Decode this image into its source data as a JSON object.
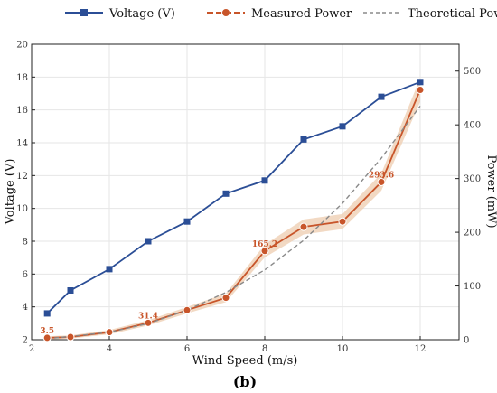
{
  "chart_data": {
    "type": "line",
    "xlabel": "Wind Speed (m/s)",
    "ylabel_left": "Voltage (V)",
    "ylabel_right": "Power (mW)",
    "panel_label": "(b)",
    "xlim": [
      2,
      13
    ],
    "ylim_left": [
      2,
      20
    ],
    "ylim_right": [
      0,
      550
    ],
    "x_ticks": [
      "2",
      "4",
      "6",
      "8",
      "10",
      "12"
    ],
    "y_left_ticks": [
      "2",
      "4",
      "6",
      "8",
      "10",
      "12",
      "14",
      "16",
      "18",
      "20"
    ],
    "y_right_ticks": [
      "0",
      "100",
      "200",
      "300",
      "400",
      "500"
    ],
    "grid": true,
    "legend_position": "top",
    "series": [
      {
        "name": "Voltage (V)",
        "axis": "left",
        "marker": "square",
        "color": "#2b4e96",
        "points": [
          {
            "x": 2.4,
            "y": 3.6
          },
          {
            "x": 3,
            "y": 5.0
          },
          {
            "x": 4,
            "y": 6.3
          },
          {
            "x": 5,
            "y": 8.0
          },
          {
            "x": 6,
            "y": 9.2
          },
          {
            "x": 7,
            "y": 10.9
          },
          {
            "x": 8,
            "y": 11.7
          },
          {
            "x": 9,
            "y": 14.2
          },
          {
            "x": 10,
            "y": 15.0
          },
          {
            "x": 11,
            "y": 16.8
          },
          {
            "x": 12,
            "y": 17.7
          }
        ]
      },
      {
        "name": "Measured Power",
        "axis": "right",
        "marker": "circle",
        "color": "#c8552a",
        "band_color": "#efcfb4",
        "points": [
          {
            "x": 2.4,
            "y": 3.5
          },
          {
            "x": 3,
            "y": 5
          },
          {
            "x": 4,
            "y": 14
          },
          {
            "x": 5,
            "y": 31.4
          },
          {
            "x": 6,
            "y": 55
          },
          {
            "x": 7,
            "y": 78
          },
          {
            "x": 8,
            "y": 165.2
          },
          {
            "x": 9,
            "y": 210
          },
          {
            "x": 10,
            "y": 220
          },
          {
            "x": 11,
            "y": 293.6
          },
          {
            "x": 12,
            "y": 465
          }
        ],
        "band_halfwidth": [
          3,
          3,
          4,
          5,
          6,
          8,
          12,
          14,
          14,
          16,
          22
        ]
      },
      {
        "name": "Theoretical Power",
        "axis": "right",
        "marker": "none",
        "color": "#8a8a8a",
        "dashed": true,
        "points": [
          {
            "x": 2.4,
            "y": 2
          },
          {
            "x": 3,
            "y": 6
          },
          {
            "x": 4,
            "y": 14
          },
          {
            "x": 5,
            "y": 30
          },
          {
            "x": 6,
            "y": 55
          },
          {
            "x": 7,
            "y": 88
          },
          {
            "x": 8,
            "y": 130
          },
          {
            "x": 9,
            "y": 185
          },
          {
            "x": 10,
            "y": 254
          },
          {
            "x": 11,
            "y": 338
          },
          {
            "x": 12,
            "y": 435
          }
        ]
      }
    ],
    "data_labels": [
      {
        "text": "3.5",
        "x": 2.4,
        "y": 3.5,
        "axis": "right"
      },
      {
        "text": "31.4",
        "x": 5,
        "y": 31.4,
        "axis": "right"
      },
      {
        "text": "165.2",
        "x": 8,
        "y": 165.2,
        "axis": "right"
      },
      {
        "text": "293.6",
        "x": 11,
        "y": 293.6,
        "axis": "right"
      }
    ]
  }
}
